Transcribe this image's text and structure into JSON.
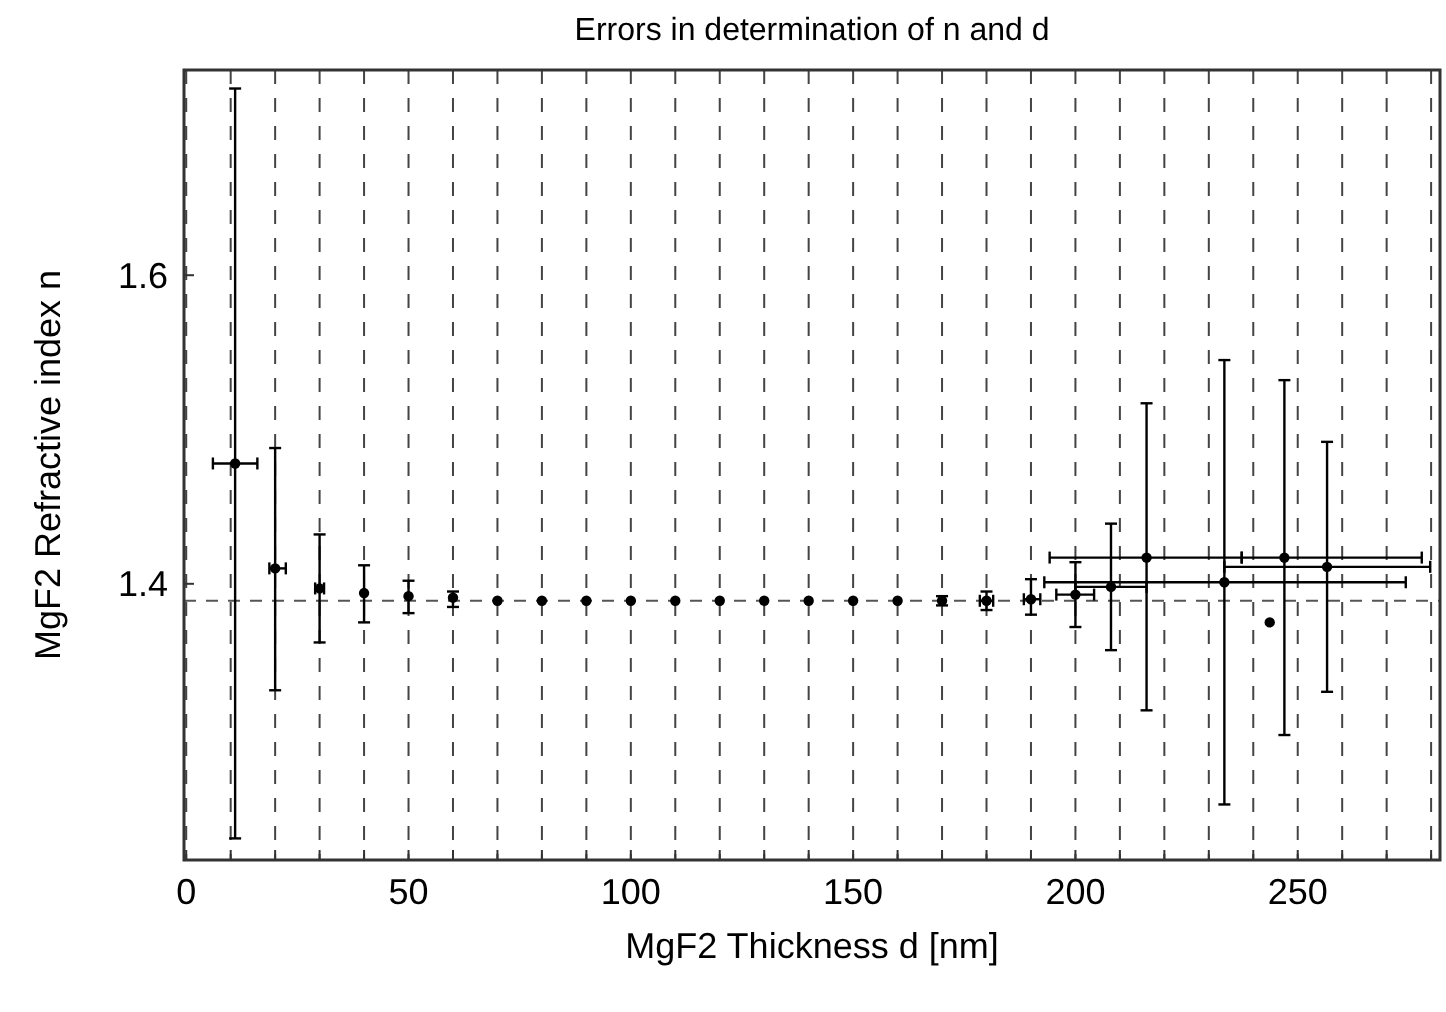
{
  "chart_data": {
    "type": "scatter",
    "title": "Errors in determination of n and d",
    "xlabel": "MgF2 Thickness d [nm]",
    "ylabel": "MgF2 Refractive index n",
    "xlim": [
      -0.5,
      282
    ],
    "ylim": [
      1.221,
      1.733
    ],
    "xticks": [
      0,
      {
        "value": 10,
        "label": null
      },
      {
        "value": 20,
        "label": null
      },
      {
        "value": 30,
        "label": null
      },
      {
        "value": 40,
        "label": null
      },
      50,
      {
        "value": 60,
        "label": null
      },
      {
        "value": 70,
        "label": null
      },
      {
        "value": 80,
        "label": null
      },
      {
        "value": 90,
        "label": null
      },
      100,
      {
        "value": 110,
        "label": null
      },
      {
        "value": 120,
        "label": null
      },
      {
        "value": 130,
        "label": null
      },
      {
        "value": 140,
        "label": null
      },
      150,
      {
        "value": 160,
        "label": null
      },
      {
        "value": 170,
        "label": null
      },
      {
        "value": 180,
        "label": null
      },
      {
        "value": 190,
        "label": null
      },
      200,
      {
        "value": 210,
        "label": null
      },
      {
        "value": 220,
        "label": null
      },
      {
        "value": 230,
        "label": null
      },
      {
        "value": 240,
        "label": null
      },
      250,
      {
        "value": 260,
        "label": null
      },
      {
        "value": 270,
        "label": null
      },
      {
        "value": 280,
        "label": null
      }
    ],
    "yticks": [
      1.4,
      1.6
    ],
    "grid": "x",
    "marker": "circle",
    "ref_lines": [
      {
        "axis": "y",
        "value": 1.389,
        "color": "#555555",
        "line_style": "dashed"
      }
    ],
    "series": [
      {
        "color": "#000000",
        "x": [
          11,
          20,
          30,
          40,
          50,
          60,
          70,
          80,
          90,
          100,
          110,
          120,
          130,
          140,
          150,
          160,
          170,
          180,
          190,
          200,
          208,
          216,
          233.5,
          243.7,
          247,
          256.6
        ],
        "values": [
          1.478,
          1.41,
          1.397,
          1.394,
          1.392,
          1.391,
          1.389,
          1.389,
          1.389,
          1.389,
          1.389,
          1.389,
          1.389,
          1.389,
          1.389,
          1.389,
          1.389,
          1.389,
          1.39,
          1.393,
          1.398,
          1.417,
          1.401,
          1.375,
          1.417,
          1.411
        ],
        "errors": [
          [
            1.235,
            1.721
          ],
          [
            1.331,
            1.488
          ],
          [
            1.362,
            1.432
          ],
          [
            1.375,
            1.412
          ],
          [
            1.381,
            1.402
          ],
          [
            1.385,
            1.395
          ],
          null,
          null,
          null,
          null,
          null,
          null,
          null,
          null,
          null,
          null,
          0.003,
          0.006,
          [
            1.38,
            1.403
          ],
          [
            1.372,
            1.414
          ],
          [
            1.357,
            1.439
          ],
          [
            1.318,
            1.517
          ],
          [
            1.257,
            1.545
          ],
          null,
          [
            1.302,
            1.532
          ],
          [
            1.33,
            1.492
          ]
        ],
        "xerrors": [
          [
            6,
            16
          ],
          [
            18.7,
            22.4
          ],
          1,
          null,
          null,
          null,
          null,
          null,
          null,
          null,
          null,
          null,
          null,
          null,
          null,
          null,
          null,
          1.5,
          [
            188.4,
            192.1
          ],
          [
            195.7,
            204.2
          ],
          [
            200,
            216
          ],
          [
            194.2,
            237.4
          ],
          [
            193,
            274.3
          ],
          null,
          [
            237.4,
            277.9
          ],
          [
            233.5,
            279.8
          ]
        ]
      }
    ]
  }
}
